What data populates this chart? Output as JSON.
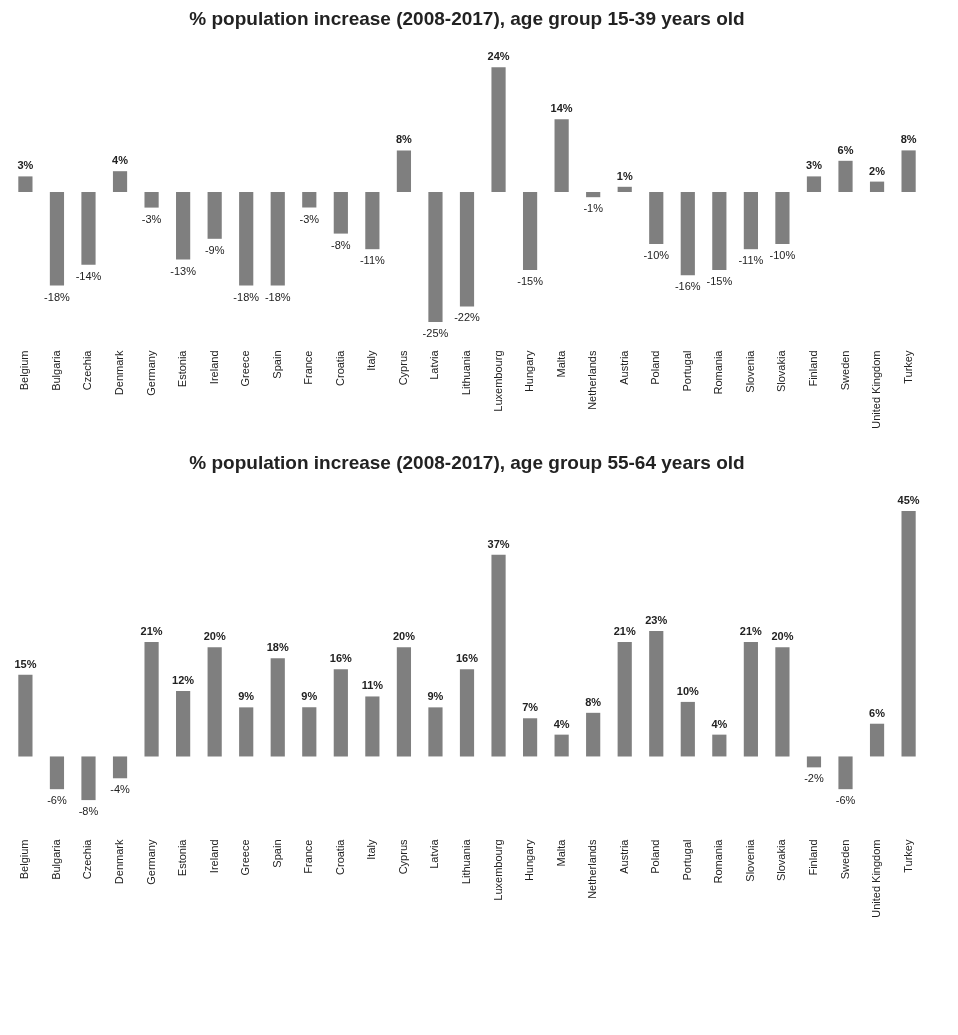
{
  "chart_data": [
    {
      "type": "bar",
      "title": "% population increase (2008-2017), age group 15-39 years old",
      "color": "#7f7f7f",
      "categories": [
        "Belgium",
        "Bulgaria",
        "Czechia",
        "Denmark",
        "Germany",
        "Estonia",
        "Ireland",
        "Greece",
        "Spain",
        "France",
        "Croatia",
        "Italy",
        "Cyprus",
        "Latvia",
        "Lithuania",
        "Luxembourg",
        "Hungary",
        "Malta",
        "Netherlands",
        "Austria",
        "Poland",
        "Portugal",
        "Romania",
        "Slovenia",
        "Slovakia",
        "Finland",
        "Sweden",
        "United Kingdom",
        "Turkey"
      ],
      "values": [
        3,
        -18,
        -14,
        4,
        -3,
        -13,
        -9,
        -18,
        -18,
        -3,
        -8,
        -11,
        8,
        -25,
        -22,
        24,
        -15,
        14,
        -1,
        1,
        -10,
        -16,
        -15,
        -11,
        -10,
        3,
        6,
        2,
        8
      ],
      "value_labels": [
        "3%",
        "-18%",
        "-14%",
        "4%",
        "-3%",
        "-13%",
        "-9%",
        "-18%",
        "-18%",
        "-3%",
        "-8%",
        "-11%",
        "8%",
        "-25%",
        "-22%",
        "24%",
        "-15%",
        "14%",
        "-1%",
        "1%",
        "-10%",
        "-16%",
        "-15%",
        "-11%",
        "-10%",
        "3%",
        "6%",
        "2%",
        "8%"
      ]
    },
    {
      "type": "bar",
      "title": "% population increase (2008-2017), age group 55-64 years old",
      "color": "#7f7f7f",
      "categories": [
        "Belgium",
        "Bulgaria",
        "Czechia",
        "Denmark",
        "Germany",
        "Estonia",
        "Ireland",
        "Greece",
        "Spain",
        "France",
        "Croatia",
        "Italy",
        "Cyprus",
        "Latvia",
        "Lithuania",
        "Luxembourg",
        "Hungary",
        "Malta",
        "Netherlands",
        "Austria",
        "Poland",
        "Portugal",
        "Romania",
        "Slovenia",
        "Slovakia",
        "Finland",
        "Sweden",
        "United Kingdom",
        "Turkey"
      ],
      "values": [
        15,
        -6,
        -8,
        -4,
        21,
        12,
        20,
        9,
        18,
        9,
        16,
        11,
        20,
        9,
        16,
        37,
        7,
        4,
        8,
        21,
        23,
        10,
        4,
        21,
        20,
        -2,
        -6,
        6,
        45
      ],
      "value_labels": [
        "15%",
        "-6%",
        "-8%",
        "-4%",
        "21%",
        "12%",
        "20%",
        "9%",
        "18%",
        "9%",
        "16%",
        "11%",
        "20%",
        "9%",
        "16%",
        "37%",
        "7%",
        "4%",
        "8%",
        "21%",
        "23%",
        "10%",
        "4%",
        "21%",
        "20%",
        "-2%",
        "-6%",
        "6%",
        "45%"
      ]
    }
  ]
}
